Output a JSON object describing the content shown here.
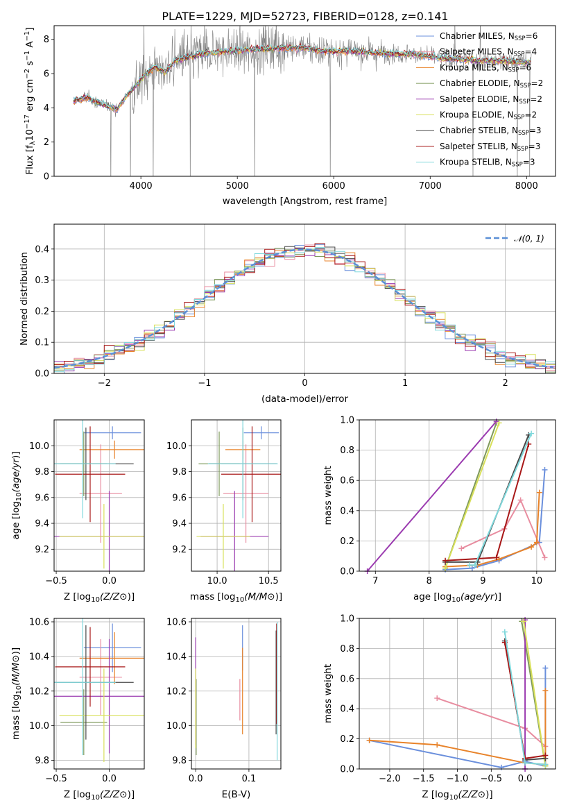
{
  "title": "PLATE=1229, MJD=52723, FIBERID=0128, z=0.141",
  "models": [
    {
      "name": "Chabrier MILES, N_SSP=6",
      "label_main": "Chabrier MILES, N",
      "label_sub": "SSP",
      "label_tail": "=6",
      "color": "#6a8fdc"
    },
    {
      "name": "Salpeter MILES, N_SSP=4",
      "label_main": "Salpeter MILES, N",
      "label_sub": "SSP",
      "label_tail": "=4",
      "color": "#e88da0"
    },
    {
      "name": "Kroupa MILES, N_SSP=6",
      "label_main": "Kroupa MILES, N",
      "label_sub": "SSP",
      "label_tail": "=6",
      "color": "#e8832a"
    },
    {
      "name": "Chabrier ELODIE, N_SSP=2",
      "label_main": "Chabrier ELODIE, N",
      "label_sub": "SSP",
      "label_tail": "=2",
      "color": "#7f9a5c"
    },
    {
      "name": "Salpeter ELODIE, N_SSP=2",
      "label_main": "Salpeter ELODIE, N",
      "label_sub": "SSP",
      "label_tail": "=2",
      "color": "#9b3bb0"
    },
    {
      "name": "Kroupa ELODIE, N_SSP=2",
      "label_main": "Kroupa ELODIE, N",
      "label_sub": "SSP",
      "label_tail": "=2",
      "color": "#d8e05a"
    },
    {
      "name": "Chabrier STELIB, N_SSP=3",
      "label_main": "Chabrier STELIB, N",
      "label_sub": "SSP",
      "label_tail": "=3",
      "color": "#4a4a4a"
    },
    {
      "name": "Salpeter STELIB, N_SSP=3",
      "label_main": "Salpeter STELIB, N",
      "label_sub": "SSP",
      "label_tail": "=3",
      "color": "#a81818"
    },
    {
      "name": "Kroupa STELIB, N_SSP=3",
      "label_main": "Kroupa STELIB, N",
      "label_sub": "SSP",
      "label_tail": "=3",
      "color": "#7fd8dc"
    }
  ],
  "chart_data": [
    {
      "id": "spectrum",
      "type": "line",
      "xlabel": "wavelength [Angstrom, rest frame]",
      "ylabel": "Flux [f_λ 10^-17 erg cm^-2 s^-1 A^-1]",
      "xlim": [
        3100,
        8300
      ],
      "ylim": [
        0,
        8.8
      ],
      "xticks": [
        4000,
        5000,
        6000,
        7000,
        8000
      ],
      "yticks": [
        0,
        2,
        4,
        6,
        8
      ],
      "data_color": "#808080",
      "model_envelope": {
        "x": [
          3300,
          3450,
          3550,
          3650,
          3750,
          3850,
          3950,
          4050,
          4150,
          4250,
          4350,
          4500,
          4700,
          4900,
          5100,
          5300,
          5500,
          5700,
          5900,
          6100,
          6300,
          6500,
          6700,
          6900,
          7100,
          7300,
          7500,
          7700,
          7900,
          8050
        ],
        "y": [
          4.4,
          4.6,
          4.3,
          4.1,
          3.9,
          4.7,
          5.3,
          6.0,
          6.4,
          6.1,
          6.7,
          7.0,
          7.2,
          7.3,
          7.4,
          7.45,
          7.5,
          7.5,
          7.3,
          7.35,
          7.25,
          7.2,
          7.15,
          7.1,
          6.9,
          6.85,
          6.75,
          6.75,
          6.7,
          6.65
        ]
      }
    },
    {
      "id": "residuals",
      "type": "line",
      "xlabel": "(data-model)/error",
      "ylabel": "Normed distribution",
      "xlim": [
        -2.5,
        2.5
      ],
      "ylim": [
        0,
        0.48
      ],
      "xticks": [
        -2,
        -1,
        0,
        1,
        2
      ],
      "yticks": [
        0.0,
        0.1,
        0.2,
        0.3,
        0.4
      ],
      "legend": "𝒩(0, 1)",
      "gaussian": {
        "mean": 0,
        "sigma": 1,
        "color": "#5b8fd6"
      },
      "bin_width": 0.1
    },
    {
      "id": "age_vs_Z",
      "type": "scatter",
      "xlabel": "Z [log10(Z/Z⊙)]",
      "ylabel": "age  [log10(age/yr)]",
      "xlim": [
        -0.52,
        0.33
      ],
      "ylim": [
        9.03,
        10.2
      ],
      "xticks": [
        -0.5,
        0.0
      ],
      "yticks": [
        9.2,
        9.4,
        9.6,
        9.8,
        10.0
      ],
      "points": [
        {
          "model": 0,
          "x": 0.03,
          "y": 10.1,
          "xerr": 0.27,
          "yerr": 0.05
        },
        {
          "model": 1,
          "x": -0.08,
          "y": 9.63,
          "xerr": 0.2,
          "yerr": 0.38
        },
        {
          "model": 2,
          "x": 0.05,
          "y": 9.97,
          "xerr": 0.33,
          "yerr": 0.07
        },
        {
          "model": 3,
          "x": -0.24,
          "y": 9.86,
          "xerr": 0.22,
          "yerr": 0.25
        },
        {
          "model": 4,
          "x": 0.0,
          "y": 9.3,
          "xerr": 0.52,
          "yerr": 0.35
        },
        {
          "model": 5,
          "x": -0.05,
          "y": 9.3,
          "xerr": 0.42,
          "yerr": 0.25
        },
        {
          "model": 6,
          "x": -0.22,
          "y": 9.86,
          "xerr": 0.45,
          "yerr": 0.28
        },
        {
          "model": 7,
          "x": -0.18,
          "y": 9.78,
          "xerr": 0.33,
          "yerr": 0.37
        },
        {
          "model": 8,
          "x": -0.25,
          "y": 9.86,
          "xerr": 0.31,
          "yerr": 0.42
        }
      ]
    },
    {
      "id": "age_vs_mass",
      "type": "scatter",
      "xlabel": "mass [log10(M/M⊙)]",
      "ylabel": "",
      "xlim": [
        9.75,
        10.62
      ],
      "ylim": [
        9.03,
        10.2
      ],
      "xticks": [
        10.0,
        10.5
      ],
      "yticks": [
        9.2,
        9.4,
        9.6,
        9.8,
        10.0
      ],
      "points": [
        {
          "model": 0,
          "x": 10.43,
          "y": 10.1,
          "xerr": 0.17,
          "yerr": 0.05
        },
        {
          "model": 1,
          "x": 10.28,
          "y": 9.63,
          "xerr": 0.22,
          "yerr": 0.38
        },
        {
          "model": 2,
          "x": 10.25,
          "y": 9.97,
          "xerr": 0.17,
          "yerr": 0.07
        },
        {
          "model": 3,
          "x": 10.02,
          "y": 9.86,
          "xerr": 0.2,
          "yerr": 0.25
        },
        {
          "model": 4,
          "x": 10.17,
          "y": 9.3,
          "xerr": 0.33,
          "yerr": 0.35
        },
        {
          "model": 5,
          "x": 10.06,
          "y": 9.3,
          "xerr": 0.26,
          "yerr": 0.25
        },
        {
          "model": 6,
          "x": 10.25,
          "y": 9.86,
          "xerr": 0.33,
          "yerr": 0.28
        },
        {
          "model": 7,
          "x": 10.34,
          "y": 9.78,
          "xerr": 0.3,
          "yerr": 0.37
        },
        {
          "model": 8,
          "x": 10.25,
          "y": 9.86,
          "xerr": 0.34,
          "yerr": 0.42
        }
      ]
    },
    {
      "id": "mass_weight_vs_age",
      "type": "line",
      "xlabel": "age  [log10(age/yr)]",
      "ylabel": "mass weight",
      "xlim": [
        6.7,
        10.35
      ],
      "ylim": [
        0,
        1
      ],
      "xticks": [
        7,
        8,
        9,
        10
      ],
      "yticks": [
        0.0,
        0.2,
        0.4,
        0.6,
        0.8,
        1.0
      ],
      "series": [
        {
          "model": 0,
          "x": [
            8.3,
            8.8,
            9.3,
            10.05,
            10.15
          ],
          "y": [
            0.01,
            0.02,
            0.07,
            0.19,
            0.67
          ]
        },
        {
          "model": 1,
          "x": [
            8.6,
            9.4,
            9.7,
            10.15
          ],
          "y": [
            0.15,
            0.28,
            0.47,
            0.09
          ]
        },
        {
          "model": 2,
          "x": [
            8.3,
            8.9,
            9.3,
            9.9,
            10.0,
            10.05
          ],
          "y": [
            0.03,
            0.04,
            0.08,
            0.16,
            0.19,
            0.52
          ]
        },
        {
          "model": 3,
          "x": [
            8.3,
            9.25
          ],
          "y": [
            0.02,
            0.98
          ]
        },
        {
          "model": 4,
          "x": [
            6.85,
            9.25
          ],
          "y": [
            0.0,
            0.99
          ]
        },
        {
          "model": 5,
          "x": [
            8.3,
            9.3
          ],
          "y": [
            0.02,
            0.98
          ]
        },
        {
          "model": 6,
          "x": [
            8.3,
            8.9,
            9.85
          ],
          "y": [
            0.06,
            0.06,
            0.9
          ]
        },
        {
          "model": 7,
          "x": [
            8.3,
            9.25,
            9.85
          ],
          "y": [
            0.07,
            0.09,
            0.84
          ]
        },
        {
          "model": 8,
          "x": [
            8.75,
            8.85,
            9.9
          ],
          "y": [
            0.04,
            0.04,
            0.91
          ]
        }
      ]
    },
    {
      "id": "mass_vs_Z",
      "type": "scatter",
      "xlabel": "Z [log10(Z/Z⊙)]",
      "ylabel": "mass [log10(M/M⊙)]",
      "xlim": [
        -0.52,
        0.33
      ],
      "ylim": [
        9.75,
        10.62
      ],
      "xticks": [
        -0.5,
        0.0
      ],
      "yticks": [
        9.8,
        10.0,
        10.2,
        10.4,
        10.6
      ],
      "points": [
        {
          "model": 0,
          "x": 0.03,
          "y": 10.45,
          "xerr": 0.27,
          "yerr": 0.14
        },
        {
          "model": 1,
          "x": -0.08,
          "y": 10.28,
          "xerr": 0.2,
          "yerr": 0.22
        },
        {
          "model": 2,
          "x": 0.05,
          "y": 10.39,
          "xerr": 0.33,
          "yerr": 0.15
        },
        {
          "model": 3,
          "x": -0.24,
          "y": 10.02,
          "xerr": 0.22,
          "yerr": 0.19
        },
        {
          "model": 4,
          "x": 0.0,
          "y": 10.17,
          "xerr": 0.52,
          "yerr": 0.33
        },
        {
          "model": 5,
          "x": -0.05,
          "y": 10.06,
          "xerr": 0.42,
          "yerr": 0.27
        },
        {
          "model": 6,
          "x": -0.22,
          "y": 10.25,
          "xerr": 0.45,
          "yerr": 0.33
        },
        {
          "model": 7,
          "x": -0.18,
          "y": 10.34,
          "xerr": 0.33,
          "yerr": 0.23
        },
        {
          "model": 8,
          "x": -0.25,
          "y": 10.25,
          "xerr": 0.31,
          "yerr": 0.42
        }
      ]
    },
    {
      "id": "mass_vs_EBV",
      "type": "scatter",
      "xlabel": "E(B-V)",
      "ylabel": "",
      "xlim": [
        -0.008,
        0.16
      ],
      "ylim": [
        9.75,
        10.62
      ],
      "xticks": [
        0.0,
        0.1
      ],
      "yticks": [
        9.8,
        10.0,
        10.2,
        10.4,
        10.6
      ],
      "points": [
        {
          "model": 0,
          "x": 0.088,
          "y": 10.45,
          "xerr": 0,
          "yerr": 0.13
        },
        {
          "model": 1,
          "x": 0.083,
          "y": 10.15,
          "xerr": 0,
          "yerr": 0.12
        },
        {
          "model": 2,
          "x": 0.088,
          "y": 10.2,
          "xerr": 0,
          "yerr": 0.25
        },
        {
          "model": 3,
          "x": 0.001,
          "y": 10.05,
          "xerr": 0,
          "yerr": 0.22
        },
        {
          "model": 4,
          "x": 0.0,
          "y": 10.2,
          "xerr": 0,
          "yerr": 0.31
        },
        {
          "model": 5,
          "x": 0.0,
          "y": 10.1,
          "xerr": 0,
          "yerr": 0.23
        },
        {
          "model": 6,
          "x": 0.151,
          "y": 10.25,
          "xerr": 0,
          "yerr": 0.3
        },
        {
          "model": 7,
          "x": 0.152,
          "y": 10.3,
          "xerr": 0,
          "yerr": 0.29
        },
        {
          "model": 8,
          "x": 0.153,
          "y": 10.2,
          "xerr": 0,
          "yerr": 0.4
        }
      ]
    },
    {
      "id": "mass_weight_vs_Z",
      "type": "line",
      "xlabel": "Z [log10(Z/Z⊙)]",
      "ylabel": "mass weight",
      "xlim": [
        -2.45,
        0.45
      ],
      "ylim": [
        0,
        1
      ],
      "xticks": [
        -2.0,
        -1.5,
        -1.0,
        -0.5,
        0.0
      ],
      "yticks": [
        0.0,
        0.2,
        0.4,
        0.6,
        0.8,
        1.0
      ],
      "series": [
        {
          "model": 0,
          "x": [
            -2.3,
            -0.35,
            0.0,
            0.3,
            0.3
          ],
          "y": [
            0.19,
            0.01,
            0.05,
            0.02,
            0.67
          ]
        },
        {
          "model": 1,
          "x": [
            -1.3,
            0.0,
            0.3
          ],
          "y": [
            0.47,
            0.27,
            0.15
          ]
        },
        {
          "model": 2,
          "x": [
            -2.3,
            -1.3,
            0.0,
            0.3,
            0.3
          ],
          "y": [
            0.19,
            0.16,
            0.04,
            0.03,
            0.52
          ]
        },
        {
          "model": 3,
          "x": [
            -0.05,
            0.3
          ],
          "y": [
            0.98,
            0.02
          ]
        },
        {
          "model": 4,
          "x": [
            0.0,
            0.0
          ],
          "y": [
            0.0,
            0.99
          ]
        },
        {
          "model": 5,
          "x": [
            -0.02,
            0.3
          ],
          "y": [
            0.98,
            0.02
          ]
        },
        {
          "model": 6,
          "x": [
            -0.3,
            0.0,
            0.3
          ],
          "y": [
            0.85,
            0.06,
            0.07
          ]
        },
        {
          "model": 7,
          "x": [
            -0.3,
            0.0,
            0.3
          ],
          "y": [
            0.84,
            0.07,
            0.09
          ]
        },
        {
          "model": 8,
          "x": [
            -0.3,
            0.0,
            0.3
          ],
          "y": [
            0.91,
            0.04,
            0.03
          ]
        }
      ]
    }
  ]
}
